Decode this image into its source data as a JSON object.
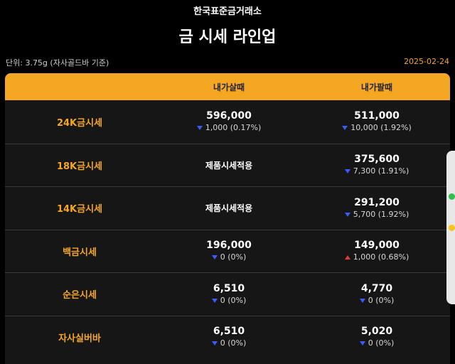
{
  "header": {
    "org": "한국표준금거래소",
    "title": "금 시세 라인업"
  },
  "meta": {
    "unit": "단위: 3.75g (자사골드바 기준)",
    "date": "2025-02-24"
  },
  "columns": {
    "buy": "내가살때",
    "sell": "내가팔때"
  },
  "colors": {
    "accent": "#f5a623",
    "down": "#3b5bff",
    "up": "#e53935"
  },
  "rows": [
    {
      "name": "24K금시세",
      "buy": {
        "price": "596,000",
        "change": "1,000 (0.17%)",
        "dir": "down"
      },
      "sell": {
        "price": "511,000",
        "change": "10,000 (1.92%)",
        "dir": "down"
      }
    },
    {
      "name": "18K금시세",
      "buy": {
        "text": "제품시세적용"
      },
      "sell": {
        "price": "375,600",
        "change": "7,300 (1.91%)",
        "dir": "down"
      }
    },
    {
      "name": "14K금시세",
      "buy": {
        "text": "제품시세적용"
      },
      "sell": {
        "price": "291,200",
        "change": "5,700 (1.92%)",
        "dir": "down"
      }
    },
    {
      "name": "백금시세",
      "buy": {
        "price": "196,000",
        "change": "0 (0%)",
        "dir": "down"
      },
      "sell": {
        "price": "149,000",
        "change": "1,000 (0.68%)",
        "dir": "up"
      }
    },
    {
      "name": "순은시세",
      "buy": {
        "price": "6,510",
        "change": "0 (0%)",
        "dir": "down"
      },
      "sell": {
        "price": "4,770",
        "change": "0 (0%)",
        "dir": "down"
      }
    },
    {
      "name": "자사실버바",
      "buy": {
        "price": "6,510",
        "change": "0 (0%)",
        "dir": "down"
      },
      "sell": {
        "price": "5,020",
        "change": "0 (0%)",
        "dir": "down"
      }
    }
  ]
}
